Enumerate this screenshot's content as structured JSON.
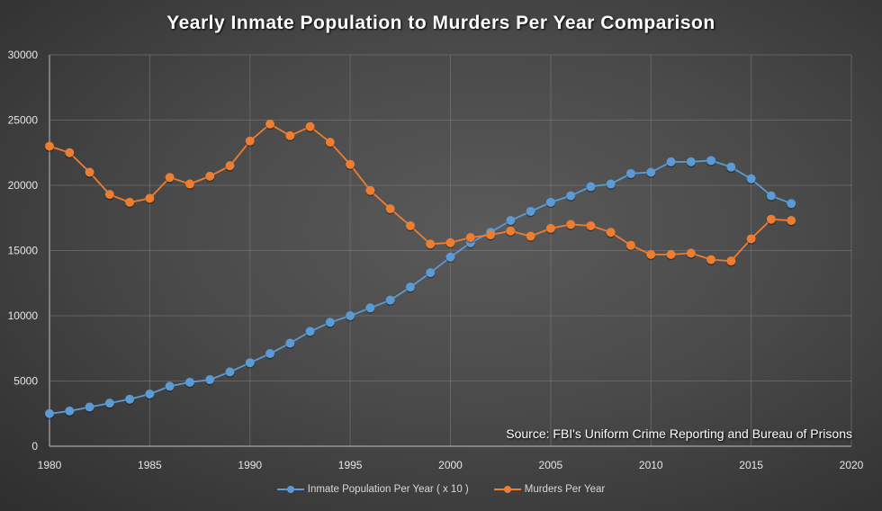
{
  "chart_data": {
    "type": "line",
    "title": "Yearly Inmate Population to Murders Per Year Comparison",
    "xlabel": "",
    "ylabel": "",
    "xlim": [
      1980,
      2020
    ],
    "ylim": [
      0,
      30000
    ],
    "x_ticks": [
      1980,
      1985,
      1990,
      1995,
      2000,
      2005,
      2010,
      2015,
      2020
    ],
    "y_ticks": [
      0,
      5000,
      10000,
      15000,
      20000,
      25000,
      30000
    ],
    "grid": true,
    "legend_position": "bottom",
    "x": [
      1980,
      1981,
      1982,
      1983,
      1984,
      1985,
      1986,
      1987,
      1988,
      1989,
      1990,
      1991,
      1992,
      1993,
      1994,
      1995,
      1996,
      1997,
      1998,
      1999,
      2000,
      2001,
      2002,
      2003,
      2004,
      2005,
      2006,
      2007,
      2008,
      2009,
      2010,
      2011,
      2012,
      2013,
      2014,
      2015,
      2016,
      2017
    ],
    "series": [
      {
        "name": "Inmate Population Per Year ( x 10 )",
        "color": "#5b9bd5",
        "values": [
          2500,
          2700,
          3000,
          3300,
          3600,
          4000,
          4600,
          4900,
          5100,
          5700,
          6400,
          7100,
          7900,
          8800,
          9500,
          10000,
          10600,
          11200,
          12200,
          13300,
          14500,
          15600,
          16400,
          17300,
          18000,
          18700,
          19200,
          19900,
          20100,
          20900,
          21000,
          21800,
          21800,
          21900,
          21400,
          20500,
          19200,
          18600
        ]
      },
      {
        "name": "Murders Per Year",
        "color": "#ed7d31",
        "values": [
          23000,
          22500,
          21000,
          19300,
          18700,
          19000,
          20600,
          20100,
          20700,
          21500,
          23400,
          24700,
          23800,
          24500,
          23300,
          21600,
          19600,
          18200,
          16900,
          15500,
          15600,
          16000,
          16200,
          16500,
          16100,
          16700,
          17000,
          16900,
          16400,
          15400,
          14700,
          14700,
          14800,
          14300,
          14200,
          15900,
          17400,
          17300
        ]
      }
    ],
    "annotation": "Source: FBI's Uniform Crime Reporting and Bureau of Prisons"
  }
}
